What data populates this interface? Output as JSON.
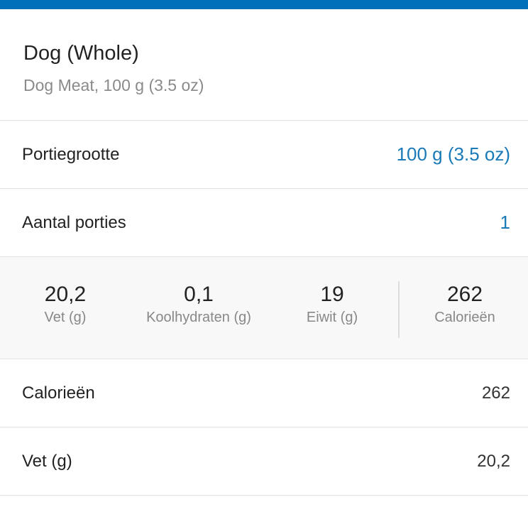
{
  "header": {
    "title": "Dog (Whole)",
    "subtitle": "Dog Meat, 100 g (3.5 oz)"
  },
  "serving_size": {
    "label": "Portiegrootte",
    "value": "100 g (3.5 oz)"
  },
  "servings": {
    "label": "Aantal porties",
    "value": "1"
  },
  "macros": [
    {
      "value": "20,2",
      "label": "Vet (g)"
    },
    {
      "value": "0,1",
      "label": "Koolhydraten (g)"
    },
    {
      "value": "19",
      "label": "Eiwit (g)"
    },
    {
      "value": "262",
      "label": "Calorieën"
    }
  ],
  "nutrients": [
    {
      "label": "Calorieën",
      "value": "262"
    },
    {
      "label": "Vet (g)",
      "value": "20,2"
    }
  ],
  "colors": {
    "accent": "#0070ba",
    "link": "#1a7ab8"
  }
}
